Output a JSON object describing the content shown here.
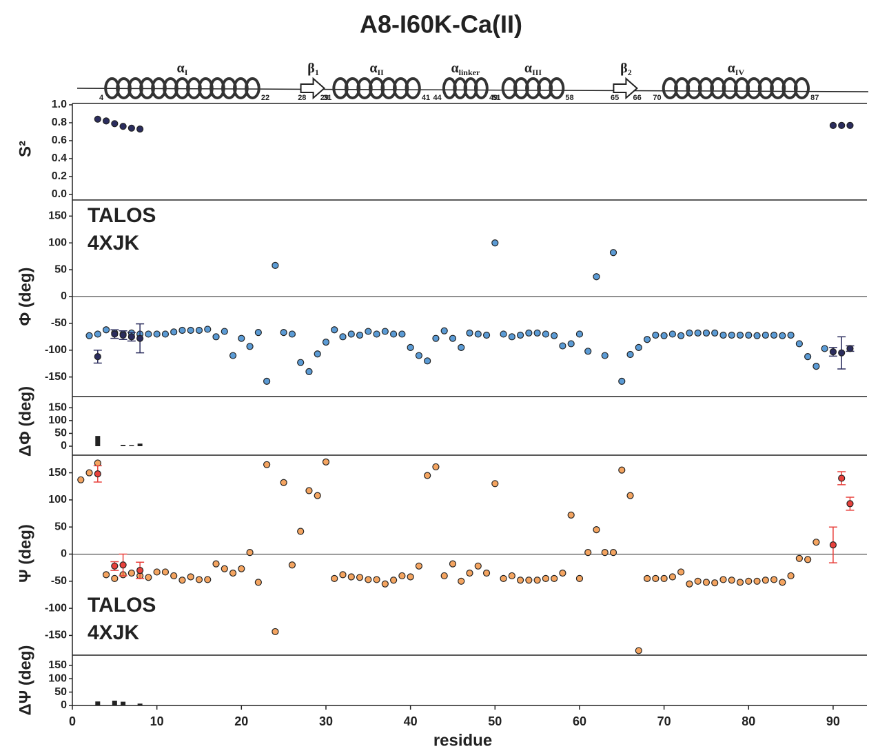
{
  "title": "A8-I60K-Ca(II)",
  "secondary_structure": [
    {
      "kind": "helix",
      "symbol": "α",
      "sub": "I",
      "start": 4,
      "end": 22
    },
    {
      "kind": "strand",
      "symbol": "β",
      "sub": "1",
      "start": 28,
      "end": 29
    },
    {
      "kind": "helix",
      "symbol": "α",
      "sub": "II",
      "start": 31,
      "end": 41
    },
    {
      "kind": "helix",
      "symbol": "α",
      "sub": "linker",
      "start": 44,
      "end": 49
    },
    {
      "kind": "helix",
      "symbol": "α",
      "sub": "III",
      "start": 51,
      "end": 58
    },
    {
      "kind": "strand",
      "symbol": "β",
      "sub": "2",
      "start": 65,
      "end": 66
    },
    {
      "kind": "helix",
      "symbol": "α",
      "sub": "IV",
      "start": 70,
      "end": 87
    }
  ],
  "chart_data": [
    {
      "type": "scatter",
      "ylabel": "S²",
      "ylim": [
        0,
        1
      ],
      "yticks": [
        {
          "value": 0,
          "label": "0.0"
        },
        0.2,
        0.4,
        0.6,
        0.8,
        {
          "value": 1,
          "label": "1.0"
        }
      ],
      "xlim": [
        0,
        94
      ],
      "series": [
        {
          "color": "#2b2d5e",
          "x": [
            3,
            4,
            5,
            6,
            7,
            8,
            90,
            91,
            92
          ],
          "values": [
            0.84,
            0.82,
            0.79,
            0.76,
            0.74,
            0.73,
            0.77,
            0.77,
            0.77
          ]
        }
      ]
    },
    {
      "type": "scatter",
      "ylabel": "Φ (deg)",
      "ylim": [
        -180,
        180
      ],
      "yticks": [
        -150,
        -100,
        -50,
        0,
        50,
        100,
        150
      ],
      "xlim": [
        0,
        94
      ],
      "legend": "upper left",
      "series": [
        {
          "name": "TALOS",
          "color": "#2b2d5e",
          "x": [
            3,
            5,
            6,
            7,
            8,
            90,
            91,
            92
          ],
          "values": [
            -112,
            -70,
            -72,
            -75,
            -78,
            -103,
            -105,
            -97
          ],
          "errors": [
            12,
            8,
            8,
            8,
            27,
            8,
            30,
            5
          ]
        },
        {
          "name": "4XJK",
          "color": "#5b9bd5",
          "x": [
            2,
            3,
            4,
            5,
            6,
            7,
            8,
            9,
            10,
            11,
            12,
            13,
            14,
            15,
            16,
            17,
            18,
            19,
            20,
            21,
            22,
            23,
            24,
            25,
            26,
            27,
            28,
            29,
            30,
            31,
            32,
            33,
            34,
            35,
            36,
            37,
            38,
            39,
            40,
            41,
            42,
            43,
            44,
            45,
            46,
            47,
            48,
            49,
            50,
            51,
            52,
            53,
            54,
            55,
            56,
            57,
            58,
            59,
            60,
            61,
            62,
            63,
            64,
            65,
            66,
            67,
            68,
            69,
            70,
            71,
            72,
            73,
            74,
            75,
            76,
            77,
            78,
            79,
            80,
            81,
            82,
            83,
            84,
            85,
            86,
            87,
            88,
            89
          ],
          "values": [
            -73,
            -70,
            -62,
            -68,
            -70,
            -68,
            -70,
            -70,
            -70,
            -70,
            -66,
            -63,
            -63,
            -63,
            -61,
            -75,
            -65,
            -110,
            -78,
            -93,
            -67,
            -158,
            58,
            -67,
            -70,
            -123,
            -140,
            -107,
            -85,
            -62,
            -75,
            -70,
            -72,
            -65,
            -70,
            -65,
            -70,
            -70,
            -95,
            -110,
            -120,
            -78,
            -64,
            -78,
            -95,
            -68,
            -70,
            -72,
            100,
            -70,
            -75,
            -72,
            -68,
            -68,
            -70,
            -73,
            -92,
            -88,
            -70,
            -102,
            37,
            -110,
            82,
            -158,
            -108,
            -95,
            -80,
            -72,
            -73,
            -70,
            -73,
            -68,
            -68,
            -68,
            -68,
            -72,
            -72,
            -72,
            -72,
            -73,
            -72,
            -72,
            -73,
            -72,
            -88,
            -112,
            -130,
            -97
          ]
        }
      ]
    },
    {
      "type": "bar",
      "ylabel": "ΔΦ (deg)",
      "ylim": [
        0,
        175
      ],
      "yticks": [
        0,
        50,
        100,
        150
      ],
      "xlim": [
        0,
        94
      ],
      "color": "#222222",
      "x": [
        3,
        6,
        7,
        8
      ],
      "values": [
        40,
        5,
        4,
        10
      ]
    },
    {
      "type": "scatter",
      "ylabel": "Ψ (deg)",
      "ylim": [
        -180,
        180
      ],
      "yticks": [
        -150,
        -100,
        -50,
        0,
        50,
        100,
        150
      ],
      "xlim": [
        0,
        94
      ],
      "legend": "lower left",
      "series": [
        {
          "name": "TALOS",
          "color": "#e8413c",
          "x": [
            3,
            5,
            6,
            8,
            90,
            91,
            92
          ],
          "values": [
            148,
            -22,
            -20,
            -30,
            17,
            140,
            93
          ],
          "errors": [
            15,
            8,
            20,
            15,
            33,
            12,
            12
          ]
        },
        {
          "name": "4XJK",
          "color": "#f4a460",
          "x": [
            1,
            2,
            3,
            4,
            5,
            6,
            7,
            8,
            9,
            10,
            11,
            12,
            13,
            14,
            15,
            16,
            17,
            18,
            19,
            20,
            21,
            22,
            23,
            24,
            25,
            26,
            27,
            28,
            29,
            30,
            31,
            32,
            33,
            34,
            35,
            36,
            37,
            38,
            39,
            40,
            41,
            42,
            43,
            44,
            45,
            46,
            47,
            48,
            49,
            50,
            51,
            52,
            53,
            54,
            55,
            56,
            57,
            58,
            59,
            60,
            61,
            62,
            63,
            64,
            65,
            66,
            67,
            68,
            69,
            70,
            71,
            72,
            73,
            74,
            75,
            76,
            77,
            78,
            79,
            80,
            81,
            82,
            83,
            84,
            85,
            86,
            87,
            88
          ],
          "values": [
            137,
            150,
            168,
            -38,
            -45,
            -38,
            -35,
            -40,
            -43,
            -33,
            -33,
            -40,
            -48,
            -42,
            -47,
            -47,
            -18,
            -27,
            -35,
            -27,
            3,
            -52,
            165,
            -143,
            132,
            -20,
            42,
            117,
            108,
            170,
            -45,
            -38,
            -42,
            -43,
            -47,
            -47,
            -55,
            -48,
            -40,
            -42,
            -22,
            145,
            161,
            -40,
            -18,
            -50,
            -35,
            -22,
            -35,
            130,
            -45,
            -40,
            -48,
            -48,
            -48,
            -45,
            -45,
            -35,
            72,
            -45,
            3,
            45,
            3,
            3,
            155,
            108,
            -178,
            -45,
            -45,
            -45,
            -42,
            -33,
            -55,
            -50,
            -52,
            -53,
            -47,
            -48,
            -52,
            -50,
            -50,
            -48,
            -47,
            -52,
            -40,
            -8,
            -10,
            22
          ]
        }
      ]
    },
    {
      "type": "bar",
      "ylabel": "ΔΨ (deg)",
      "ylim": [
        0,
        175
      ],
      "yticks": [
        0,
        50,
        100,
        150
      ],
      "xlim": [
        0,
        94
      ],
      "xticks": [
        0,
        10,
        20,
        30,
        40,
        50,
        60,
        70,
        80,
        90
      ],
      "xlabel": "residue",
      "color": "#222222",
      "x": [
        3,
        5,
        6,
        8
      ],
      "values": [
        15,
        18,
        14,
        7
      ]
    }
  ]
}
